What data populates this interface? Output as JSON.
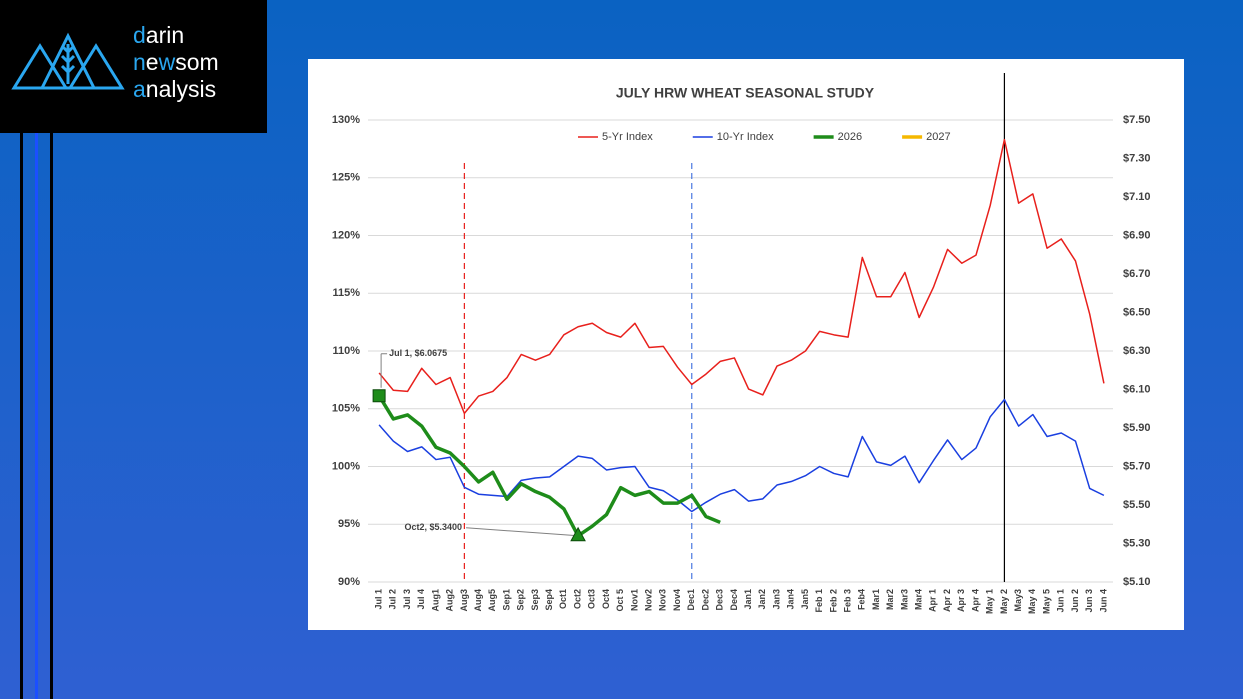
{
  "logo": {
    "lines": [
      [
        "d",
        "arin"
      ],
      [
        "n",
        "e",
        "w",
        "som"
      ],
      [
        "a",
        "nalysis"
      ]
    ]
  },
  "chart_data": {
    "type": "line",
    "title": "JULY HRW WHEAT SEASONAL STUDY",
    "categories": [
      "Jul 1",
      "Jul 2",
      "Jul 3",
      "Jul 4",
      "Aug1",
      "Aug2",
      "Aug3",
      "Aug4",
      "Aug5",
      "Sep1",
      "Sep2",
      "Sep3",
      "Sep4",
      "Oct1",
      "Oct2",
      "Oct3",
      "Oct4",
      "Oct 5",
      "Nov1",
      "Nov2",
      "Nov3",
      "Nov4",
      "Dec1",
      "Dec2",
      "Dec3",
      "Dec4",
      "Jan1",
      "Jan2",
      "Jan3",
      "Jan4",
      "Jan5",
      "Feb 1",
      "Feb 2",
      "Feb 3",
      "Feb4",
      "Mar1",
      "Mar2",
      "Mar3",
      "Mar4",
      "Apr 1",
      "Apr 2",
      "Apr 3",
      "Apr 4",
      "May 1",
      "May 2",
      "May3",
      "May 4",
      "May 5",
      "Jun 1",
      "Jun 2",
      "Jun 3",
      "Jun 4"
    ],
    "series": [
      {
        "name": "5-Yr Index",
        "color": "#e8201c",
        "line_width": 1.5,
        "values": [
          108.1,
          106.6,
          106.5,
          108.5,
          107.1,
          107.7,
          104.6,
          106.1,
          106.5,
          107.7,
          109.7,
          109.2,
          109.7,
          111.4,
          112.1,
          112.4,
          111.6,
          111.2,
          112.4,
          110.3,
          110.4,
          108.6,
          107.1,
          108.0,
          109.1,
          109.4,
          106.7,
          106.2,
          108.7,
          109.2,
          110.0,
          111.7,
          111.4,
          111.2,
          118.1,
          114.7,
          114.7,
          116.8,
          112.9,
          115.5,
          118.8,
          117.6,
          118.3,
          122.6,
          128.3,
          122.8,
          123.6,
          118.9,
          119.7,
          117.8,
          113.2,
          107.2
        ]
      },
      {
        "name": "10-Yr Index",
        "color": "#1a3fe0",
        "line_width": 1.5,
        "values": [
          103.6,
          102.2,
          101.3,
          101.7,
          100.6,
          100.8,
          98.2,
          97.6,
          97.5,
          97.4,
          98.8,
          99.0,
          99.1,
          100.0,
          100.9,
          100.7,
          99.7,
          99.9,
          100.0,
          98.2,
          97.9,
          97.1,
          96.1,
          96.9,
          97.6,
          98.0,
          97.0,
          97.2,
          98.4,
          98.7,
          99.2,
          100.0,
          99.4,
          99.1,
          102.6,
          100.4,
          100.1,
          100.9,
          98.6,
          100.5,
          102.3,
          100.6,
          101.6,
          104.3,
          105.8,
          103.5,
          104.5,
          102.6,
          102.9,
          102.2,
          98.1,
          97.5
        ]
      },
      {
        "name": "2026",
        "color": "#1e8c1a",
        "line_width": 3.5,
        "axis": "y2",
        "values": [
          6.0675,
          5.947,
          5.968,
          5.91,
          5.8,
          5.77,
          5.7,
          5.62,
          5.67,
          5.53,
          5.61,
          5.57,
          5.54,
          5.48,
          5.34,
          5.39,
          5.45,
          5.59,
          5.55,
          5.57,
          5.51,
          5.51,
          5.55,
          5.44,
          5.41,
          null,
          null,
          null,
          null,
          null,
          null,
          null,
          null,
          null,
          null,
          null,
          null,
          null,
          null,
          null,
          null,
          null,
          null,
          null,
          null,
          null,
          null,
          null,
          null,
          null,
          null,
          null
        ]
      },
      {
        "name": "2027",
        "color": "#f5b800",
        "line_width": 3.5,
        "axis": "y2",
        "values": [
          null,
          null,
          null,
          null,
          null,
          null,
          null,
          null,
          null,
          null,
          null,
          null,
          null,
          null,
          null,
          null,
          null,
          null,
          null,
          null,
          null,
          null,
          null,
          null,
          null,
          null,
          null,
          null,
          null,
          null,
          null,
          null,
          null,
          null,
          null,
          null,
          null,
          null,
          null,
          null,
          null,
          null,
          null,
          null,
          null,
          null,
          null,
          null,
          null,
          null,
          null,
          null
        ]
      }
    ],
    "ylim": [
      90,
      130
    ],
    "yticks": [
      {
        "value": 90,
        "label": "90%"
      },
      {
        "value": 95,
        "label": "95%"
      },
      {
        "value": 100,
        "label": "100%"
      },
      {
        "value": 105,
        "label": "105%"
      },
      {
        "value": 110,
        "label": "110%"
      },
      {
        "value": 115,
        "label": "115%"
      },
      {
        "value": 120,
        "label": "120%"
      },
      {
        "value": 125,
        "label": "125%"
      },
      {
        "value": 130,
        "label": "130%"
      }
    ],
    "y2lim": [
      5.1,
      7.5
    ],
    "y2ticks": [
      {
        "value": 5.1,
        "label": "$5.10"
      },
      {
        "value": 5.3,
        "label": "$5.30"
      },
      {
        "value": 5.5,
        "label": "$5.50"
      },
      {
        "value": 5.7,
        "label": "$5.70"
      },
      {
        "value": 5.9,
        "label": "$5.90"
      },
      {
        "value": 6.1,
        "label": "$6.10"
      },
      {
        "value": 6.3,
        "label": "$6.30"
      },
      {
        "value": 6.5,
        "label": "$6.50"
      },
      {
        "value": 6.7,
        "label": "$6.70"
      },
      {
        "value": 6.9,
        "label": "$6.90"
      },
      {
        "value": 7.1,
        "label": "$7.10"
      },
      {
        "value": 7.3,
        "label": "$7.30"
      },
      {
        "value": 7.5,
        "label": "$7.50"
      }
    ],
    "grid": true,
    "legend": "top",
    "reference_lines": [
      {
        "category": "Aug3",
        "color": "#e8201c",
        "style": "dashed"
      },
      {
        "category": "Dec1",
        "color": "#4a78e0",
        "style": "dashed"
      },
      {
        "category": "May 2",
        "color": "#000000",
        "style": "solid"
      }
    ],
    "annotations": [
      {
        "text": "Jul 1, $6.0675",
        "series": 2,
        "index": 0,
        "marker": "square"
      },
      {
        "text": "Oct2, $5.3400",
        "series": 2,
        "index": 14,
        "marker": "triangle"
      }
    ]
  }
}
